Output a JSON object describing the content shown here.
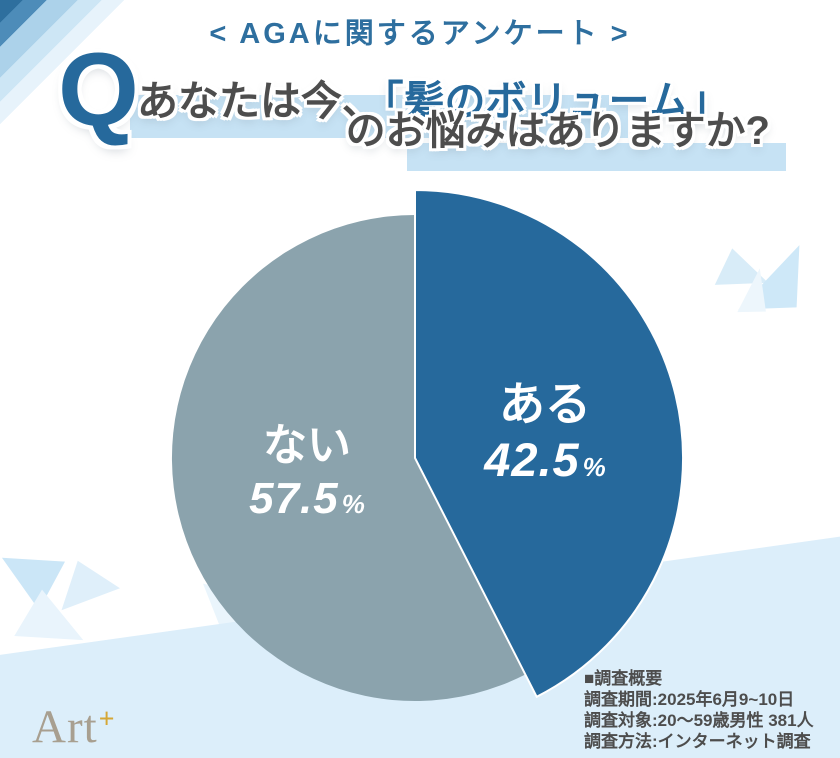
{
  "header": {
    "title": "< AGAに関するアンケート >"
  },
  "question": {
    "q_mark": "Q",
    "line1_plain": "あなたは今、",
    "line1_emphasis": "「髪のボリューム」",
    "line2": "のお悩みはありますか?"
  },
  "chart_data": {
    "type": "pie",
    "title": "あなたは今、「髪のボリューム」のお悩みはありますか?",
    "unit": "%",
    "start_angle_deg": 0,
    "direction": "clockwise",
    "legend_position": "none",
    "slices": [
      {
        "label": "ある",
        "value": 42.5,
        "color": "#26699C"
      },
      {
        "label": "ない",
        "value": 57.5,
        "color": "#8BA3AD"
      }
    ]
  },
  "survey": {
    "heading": "■調査概要",
    "lines": [
      "調査期間:2025年6月9~10日",
      "調査対象:20〜59歳男性 381人",
      "調査方法:インターネット調査"
    ]
  },
  "logo": {
    "text": "Art",
    "plus": "+"
  },
  "colors": {
    "accent_blue": "#26699C",
    "header_blue": "#2E6F9F",
    "dark_text": "#4D4D4D",
    "highlight": "#C6E2F4",
    "band": "#DCEEFA",
    "logo_gray": "#A89F90",
    "logo_gold": "#D5A735"
  }
}
